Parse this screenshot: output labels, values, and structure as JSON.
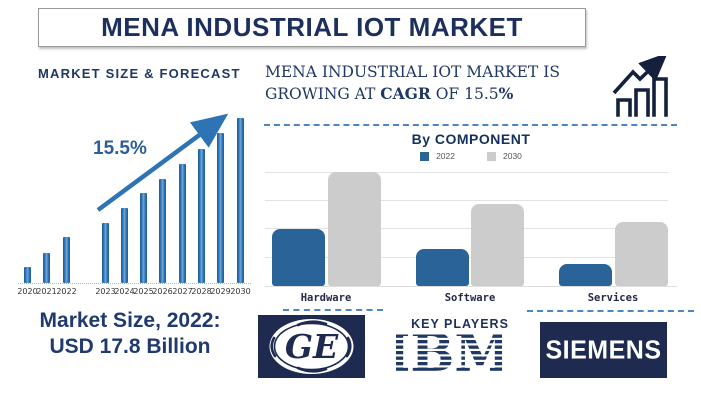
{
  "title": "MENA INDUSTRIAL IOT MARKET",
  "left_panel": {
    "heading": "MARKET SIZE & FORECAST",
    "cagr_annotation": "15.5%",
    "market_size_line1": "Market Size, 2022:",
    "market_size_line2": "USD 17.8 Billion"
  },
  "right_panel": {
    "growth_line1": "MENA INDUSTRIAL IOT MARKET IS",
    "growth_line2_prefix": "GROWING AT ",
    "growth_cagr": "CAGR",
    "growth_line2_mid": " OF 15.5",
    "growth_pct": "%"
  },
  "chart_data": [
    {
      "type": "bar",
      "title": "MARKET SIZE & FORECAST",
      "categories": [
        "2020",
        "2021",
        "2022",
        "2023",
        "2024",
        "2025",
        "2026",
        "2027",
        "2028",
        "2029",
        "2030"
      ],
      "values": [
        16,
        30,
        46,
        60,
        75,
        90,
        104,
        119,
        134,
        150,
        165
      ],
      "units": "relative height (no y-axis shown); 2022 = USD 17.8 Billion, CAGR 15.5%",
      "annotation": "15.5%",
      "xlabel": "",
      "ylabel": "",
      "grid": false,
      "legend_position": "none"
    },
    {
      "type": "bar",
      "title": "By COMPONENT",
      "categories": [
        "Hardware",
        "Software",
        "Services"
      ],
      "series": [
        {
          "name": "2022",
          "values": [
            57,
            37,
            22
          ]
        },
        {
          "name": "2030",
          "values": [
            114,
            82,
            64
          ]
        }
      ],
      "units": "relative height (no y-axis shown)",
      "grid": true,
      "legend_position": "top",
      "series_colors": {
        "2022": "#2A6397",
        "2030": "#CCCCCC"
      }
    }
  ],
  "key_players": {
    "heading": "KEY PLAYERS",
    "ge_text": "GE",
    "ibm_text": "IBM",
    "siemens_text": "SIEMENS"
  },
  "icons": {
    "growth_icon": "bar-chart-rising-arrow",
    "trend_arrow": "upward-trend-arrow"
  },
  "colors": {
    "navy": "#1F3864",
    "forecast_bar_blue": "#2E74B5",
    "component_blue": "#2A6397",
    "component_gray": "#CCCCCC",
    "dashed_line_blue": "#4D86C4"
  }
}
